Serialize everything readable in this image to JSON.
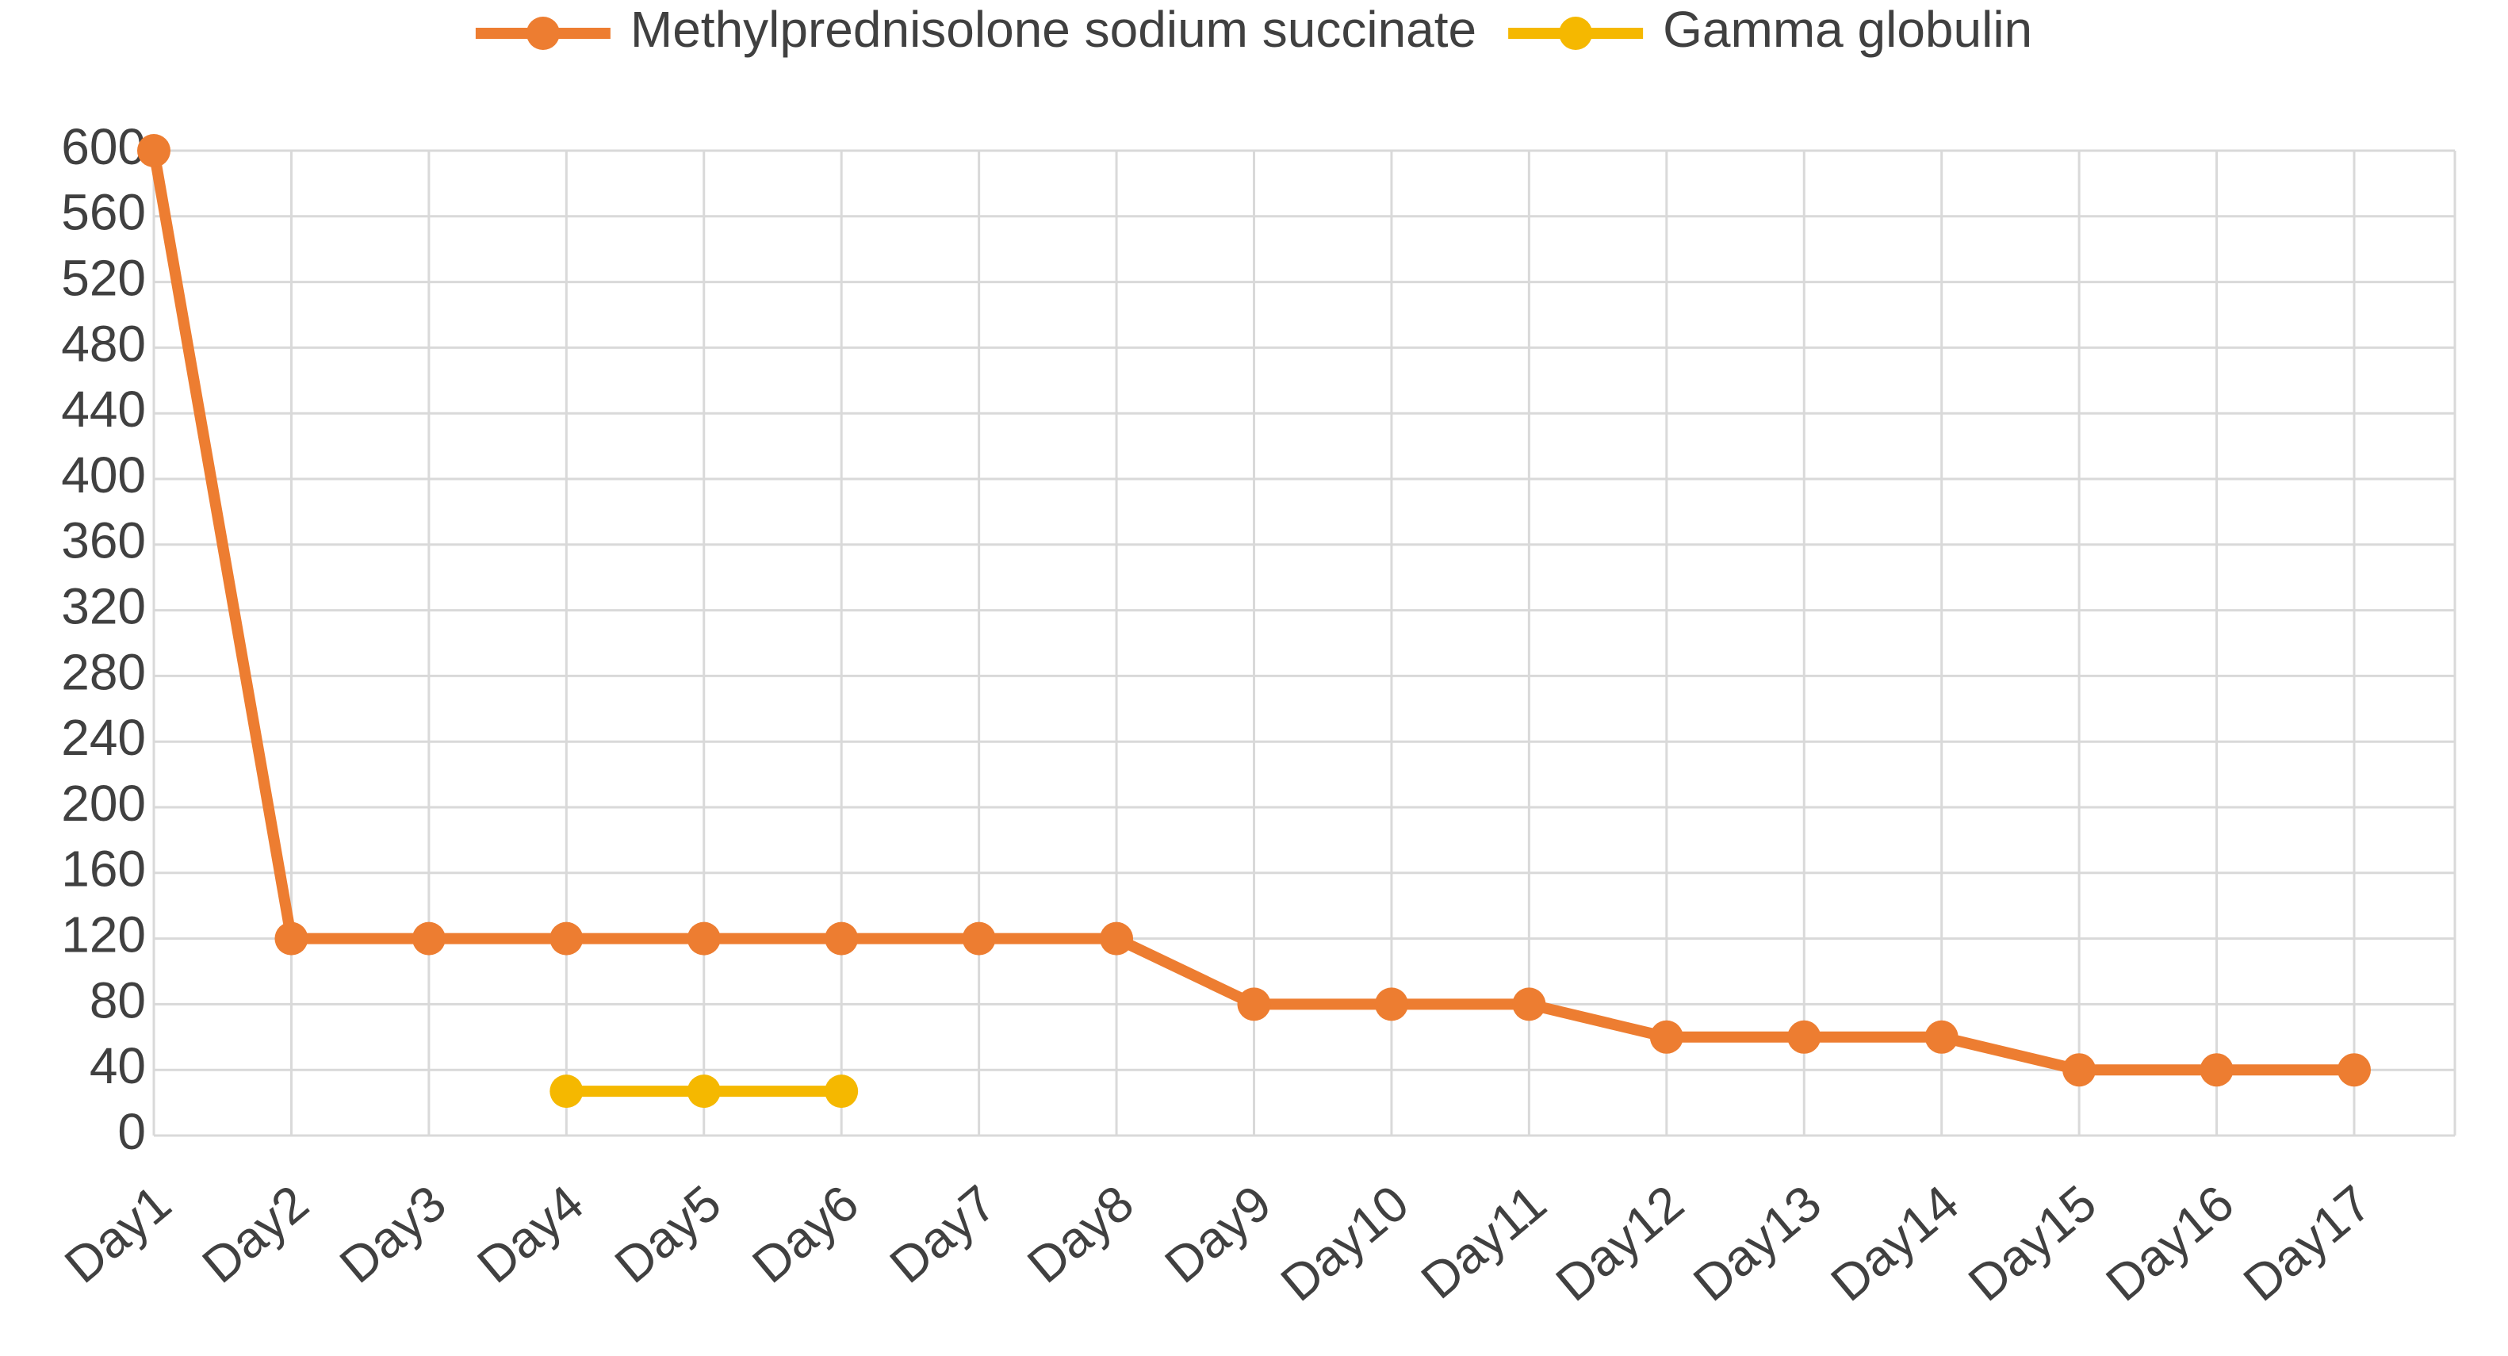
{
  "chart_data": {
    "type": "line",
    "categories": [
      "Day1",
      "Day2",
      "Day3",
      "Day4",
      "Day5",
      "Day6",
      "Day7",
      "Day8",
      "Day9",
      "Day10",
      "Day11",
      "Day12",
      "Day13",
      "Day14",
      "Day15",
      "Day16",
      "Day17"
    ],
    "series": [
      {
        "name": "Methylprednisolone sodium succinate",
        "color": "#ed7d31",
        "values": [
          600,
          120,
          120,
          120,
          120,
          120,
          120,
          120,
          80,
          80,
          80,
          60,
          60,
          60,
          40,
          40,
          40
        ]
      },
      {
        "name": "Gamma globulin",
        "color": "#f5b800",
        "values": [
          null,
          null,
          null,
          27,
          27,
          27,
          null,
          null,
          null,
          null,
          null,
          null,
          null,
          null,
          null,
          null,
          null
        ]
      }
    ],
    "ylim": [
      0,
      600
    ],
    "yticks": [
      0,
      40,
      80,
      120,
      160,
      200,
      240,
      280,
      320,
      360,
      400,
      440,
      480,
      520,
      560,
      600
    ],
    "grid": true,
    "legend": "top"
  }
}
